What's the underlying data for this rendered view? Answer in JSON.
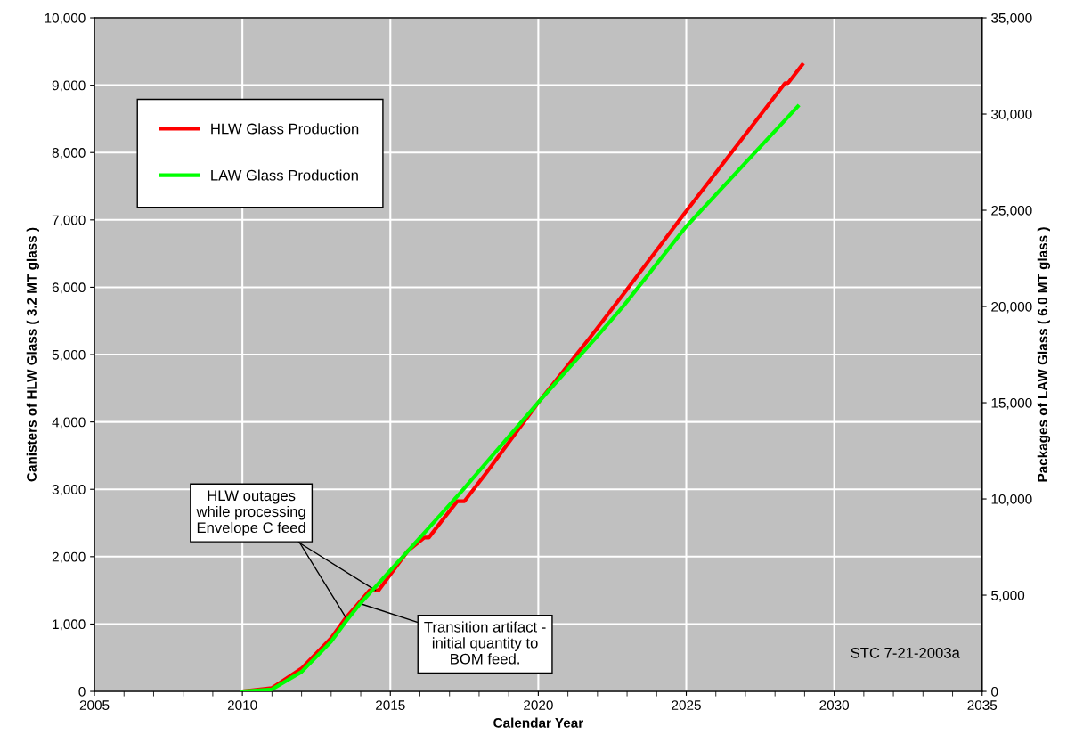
{
  "chart_data": {
    "type": "line",
    "xlabel": "Calendar Year",
    "ylabel": "Canisters of HLW Glass ( 3.2 MT glass )",
    "y2label": "Packages of LAW Glass ( 6.0 MT glass )",
    "xlim": [
      2005,
      2035
    ],
    "xticks": [
      2005,
      2010,
      2015,
      2020,
      2025,
      2030,
      2035
    ],
    "ylim": [
      0,
      10000
    ],
    "yticks": [
      {
        "value": 0,
        "label": "0"
      },
      {
        "value": 1000,
        "label": "1,000"
      },
      {
        "value": 2000,
        "label": "2,000"
      },
      {
        "value": 3000,
        "label": "3,000"
      },
      {
        "value": 4000,
        "label": "4,000"
      },
      {
        "value": 5000,
        "label": "5,000"
      },
      {
        "value": 6000,
        "label": "6,000"
      },
      {
        "value": 7000,
        "label": "7,000"
      },
      {
        "value": 8000,
        "label": "8,000"
      },
      {
        "value": 9000,
        "label": "9,000"
      },
      {
        "value": 10000,
        "label": "10,000"
      }
    ],
    "y2lim": [
      0,
      35000
    ],
    "y2ticks": [
      {
        "value": 0,
        "label": "0"
      },
      {
        "value": 5000,
        "label": "5,000"
      },
      {
        "value": 10000,
        "label": "10,000"
      },
      {
        "value": 15000,
        "label": "15,000"
      },
      {
        "value": 20000,
        "label": "20,000"
      },
      {
        "value": 25000,
        "label": "25,000"
      },
      {
        "value": 30000,
        "label": "30,000"
      },
      {
        "value": 35000,
        "label": "35,000"
      }
    ],
    "grid": true,
    "legend": "top left",
    "marker": "none",
    "line_style": "solid",
    "series": [
      {
        "name": "HLW Glass Production",
        "color": "#ff0000",
        "x": [
          2010,
          2011,
          2012,
          2013,
          2013.5,
          2013.85,
          2014.3,
          2014.6,
          2015.6,
          2016.15,
          2016.3,
          2017.26,
          2017.5,
          2018.26,
          2020,
          2021.72,
          2022.88,
          2024.93,
          2028.34,
          2028.44,
          2028.92
        ],
        "values": [
          0,
          50,
          340,
          790,
          1094,
          1270,
          1500,
          1500,
          2090,
          2284,
          2284,
          2822,
          2822,
          3254,
          4290,
          5238,
          5900,
          7090,
          9030,
          9030,
          9303
        ]
      },
      {
        "name": "LAW Glass Production",
        "color": "#00ff00",
        "axis": "y2",
        "x": [
          2010,
          2011,
          2012,
          2013,
          2013.5,
          2014,
          2015.55,
          2017.36,
          2020,
          2021.92,
          2022.88,
          2024.98,
          2028.77
        ],
        "values": [
          0,
          105,
          1015,
          2590,
          3640,
          4595,
          7220,
          10310,
          15015,
          18330,
          20030,
          24120,
          30400
        ]
      }
    ],
    "annotations": [
      {
        "text": "HLW outages\nwhile processing\nEnvelope C feed",
        "x": 2014.5,
        "y": 1500
      },
      {
        "text": "Transition artifact -\ninitial quantity to\nBOM feed.",
        "x": 2014,
        "y": 1300
      },
      "STC 7-21-2003a"
    ]
  }
}
